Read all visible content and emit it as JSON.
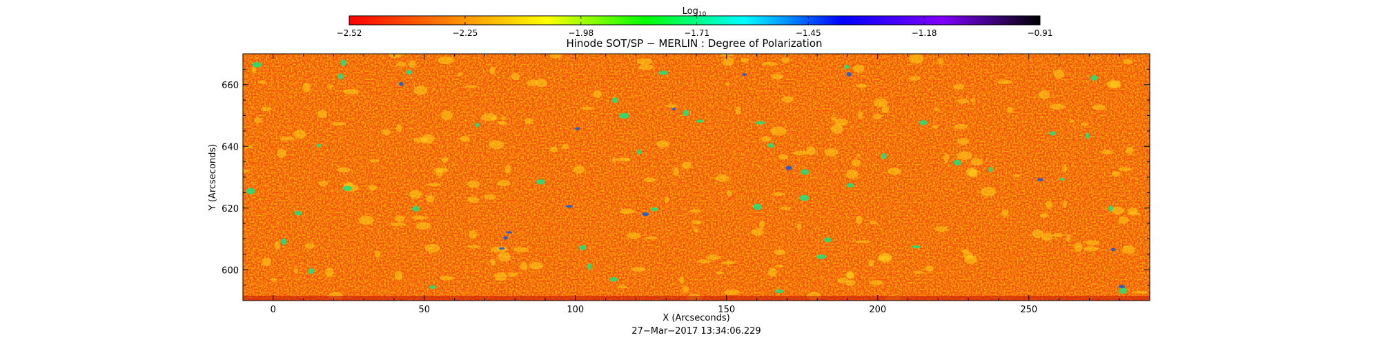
{
  "chart_data": {
    "type": "heatmap",
    "title": "Hinode SOT/SP − MERLIN : Degree of Polarization",
    "xlabel": "X (Arcseconds)",
    "ylabel": "Y (Arcseconds)",
    "xlim": [
      -10,
      290
    ],
    "ylim": [
      590,
      670
    ],
    "x_ticks": [
      0,
      50,
      100,
      150,
      200,
      250
    ],
    "y_ticks": [
      600,
      620,
      640,
      660
    ],
    "x_tick_labels": [
      "0",
      "50",
      "100",
      "150",
      "200",
      "250"
    ],
    "y_tick_labels": [
      "600",
      "620",
      "640",
      "660"
    ],
    "colorbar": {
      "label_base": "Log",
      "label_sub": "10",
      "range": [
        -2.52,
        -0.91
      ],
      "tick_values": [
        -2.52,
        -2.25,
        -1.98,
        -1.71,
        -1.45,
        -1.18,
        -0.91
      ],
      "tick_labels": [
        "−2.52",
        "−2.25",
        "−1.98",
        "−1.71",
        "−1.45",
        "−1.18",
        "−0.91"
      ],
      "colormap": [
        "#ff0000",
        "#ff8000",
        "#ffff00",
        "#00ff00",
        "#00ffff",
        "#0000ff",
        "#8000ff",
        "#000000"
      ]
    },
    "timestamp": "27−Mar−2017  13:34:06.229",
    "grid": false
  }
}
